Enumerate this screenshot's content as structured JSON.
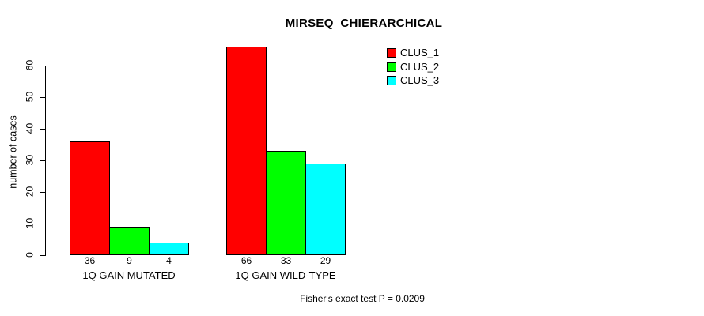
{
  "chart_data": {
    "type": "bar",
    "title": "MIRSEQ_CHIERARCHICAL",
    "ylabel": "number of cases",
    "xlabel": "",
    "categories": [
      "1Q GAIN MUTATED",
      "1Q GAIN WILD-TYPE"
    ],
    "series": [
      {
        "name": "CLUS_1",
        "color": "#ff0000",
        "values": [
          36,
          66
        ]
      },
      {
        "name": "CLUS_2",
        "color": "#00ff00",
        "values": [
          9,
          33
        ]
      },
      {
        "name": "CLUS_3",
        "color": "#00ffff",
        "values": [
          4,
          29
        ]
      }
    ],
    "yticks": [
      0,
      10,
      20,
      30,
      40,
      50,
      60
    ],
    "ylim": [
      0,
      66
    ],
    "grid": false,
    "legend_position": "top-right",
    "bar_border_color": "#000000",
    "footnote": "Fisher's exact test P = 0.0209"
  }
}
